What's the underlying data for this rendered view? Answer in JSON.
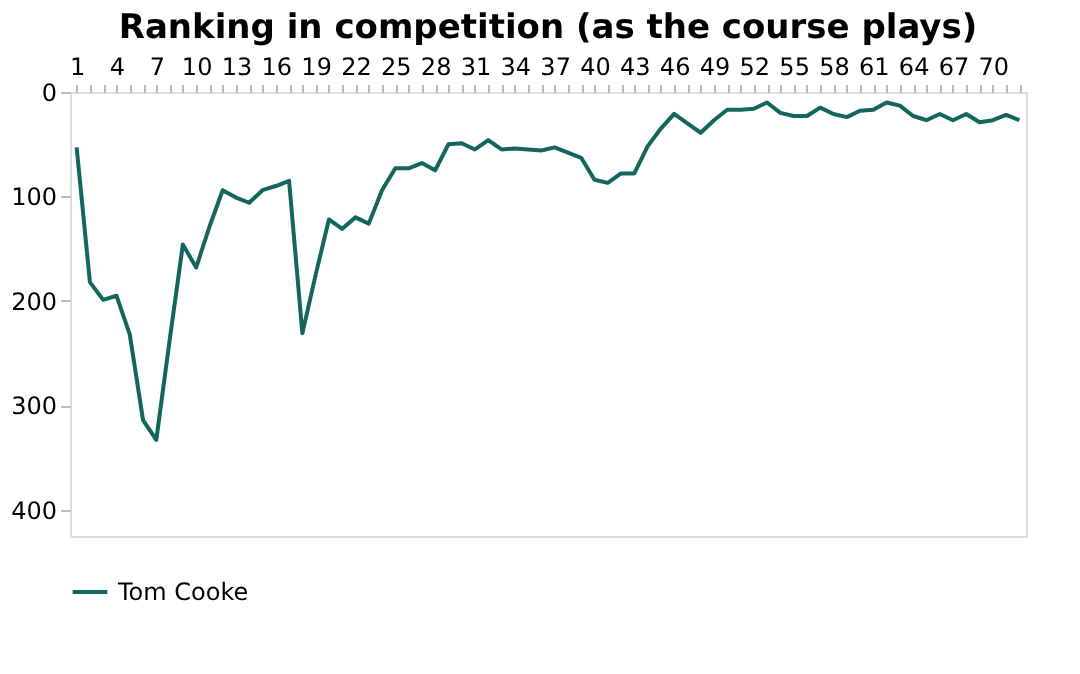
{
  "chart_data": {
    "type": "line",
    "title": "Ranking in competition (as the course plays)",
    "categories": [
      "1",
      null,
      null,
      "4",
      null,
      null,
      "7",
      null,
      null,
      "10",
      null,
      null,
      "13",
      null,
      null,
      "16",
      null,
      null,
      "19",
      null,
      null,
      "22",
      null,
      null,
      "25",
      null,
      null,
      "28",
      null,
      null,
      "31",
      null,
      null,
      "34",
      null,
      null,
      "37",
      null,
      null,
      "40",
      null,
      null,
      "43",
      null,
      null,
      "46",
      null,
      null,
      "49",
      null,
      null,
      "52",
      null,
      null,
      "55",
      null,
      null,
      "58",
      null,
      null,
      "61",
      null,
      null,
      "64",
      null,
      null,
      "67",
      null,
      null,
      "70",
      null,
      null
    ],
    "series": [
      {
        "name": "Tom Cooke",
        "color": "#13665c",
        "values": [
          53,
          182,
          199,
          195,
          232,
          314,
          333,
          238,
          146,
          168,
          129,
          94,
          101,
          106,
          94,
          90,
          85,
          231,
          175,
          122,
          131,
          120,
          126,
          94,
          73,
          73,
          68,
          75,
          50,
          49,
          55,
          46,
          55,
          54,
          55,
          56,
          53,
          58,
          63,
          84,
          87,
          78,
          78,
          52,
          35,
          21,
          30,
          39,
          27,
          17,
          17,
          16,
          10,
          20,
          23,
          23,
          15,
          21,
          24,
          18,
          17,
          10,
          13,
          23,
          27,
          21,
          27,
          21,
          29,
          27,
          22,
          27
        ]
      }
    ],
    "ylim": [
      425,
      0
    ],
    "yticks": [
      0,
      100,
      200,
      300,
      400
    ],
    "grid": false,
    "legend": "bottom",
    "marker": "none",
    "line_style": "solid"
  }
}
